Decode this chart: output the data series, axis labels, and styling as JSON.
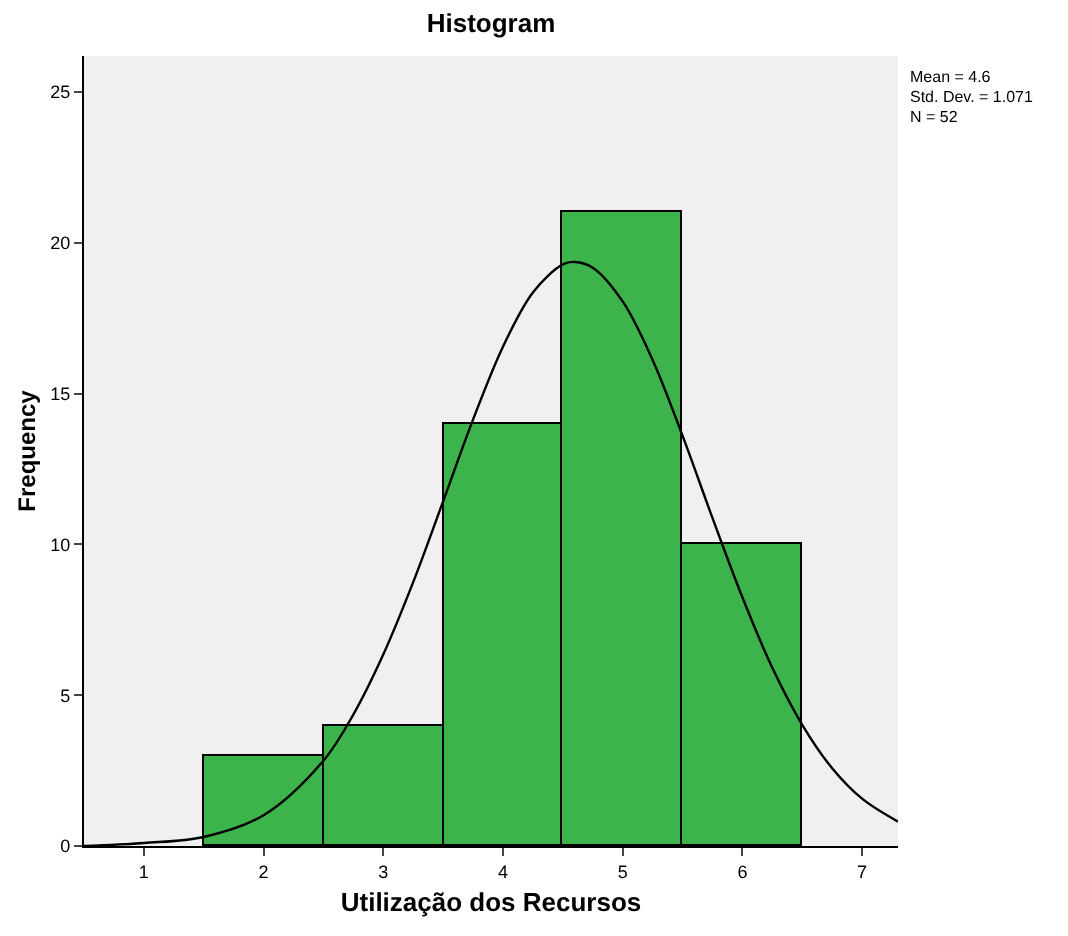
{
  "chart_data": {
    "type": "histogram",
    "title": "Histogram",
    "xlabel": "Utilização dos Recursos",
    "ylabel": "Frequency",
    "bins": [
      1.5,
      2.5,
      3.5,
      4.5,
      5.5,
      6.5
    ],
    "values": [
      3,
      4,
      14,
      21,
      10
    ],
    "color": "#3cb44b",
    "series": [
      {
        "type": "line",
        "color": "#000000",
        "x": [
          0.5,
          1.0,
          1.5,
          2.0,
          2.5,
          2.75,
          3.0,
          3.25,
          3.5,
          3.75,
          4.0,
          4.25,
          4.5,
          4.6,
          4.75,
          5.0,
          5.25,
          5.5,
          5.75,
          6.0,
          6.25,
          6.5,
          6.75,
          7.0,
          7.3
        ],
        "values": [
          0,
          0.1,
          0.3,
          1.02,
          2.83,
          4.36,
          6.35,
          8.75,
          11.43,
          14.14,
          16.56,
          18.36,
          19.29,
          19.37,
          19.18,
          18.06,
          16.12,
          13.61,
          10.88,
          8.25,
          5.91,
          4.02,
          2.58,
          1.57,
          0.81
        ]
      }
    ],
    "xlim": [
      0.5,
      7.3
    ],
    "xticks": [
      1,
      2,
      3,
      4,
      5,
      6,
      7
    ],
    "ylim": [
      0,
      26.2
    ],
    "yticks": [
      0,
      5,
      10,
      15,
      20,
      25
    ],
    "grid": false,
    "annotations": [
      "Mean = 4.6",
      "Std. Dev. = 1.071",
      "N = 52"
    ]
  }
}
